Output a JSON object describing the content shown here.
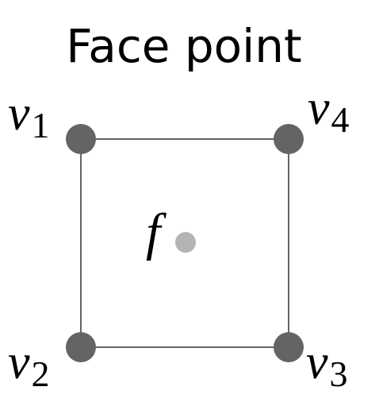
{
  "title": "Face point",
  "vertices": [
    {
      "base": "v",
      "sub": "1"
    },
    {
      "base": "v",
      "sub": "2"
    },
    {
      "base": "v",
      "sub": "3"
    },
    {
      "base": "v",
      "sub": "4"
    }
  ],
  "face_point": {
    "label": "f"
  },
  "colors": {
    "vertex": "#646464",
    "face_point": "#b4b4b4",
    "edge": "#646464",
    "text": "#000000"
  }
}
